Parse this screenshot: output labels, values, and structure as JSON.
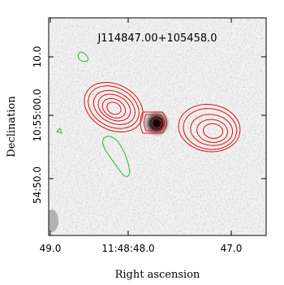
{
  "figure": {
    "title": "J114847.00+105458.0",
    "x_label": "Right ascension",
    "y_label": "Declination",
    "x_ticks": [
      "49.0",
      "11:48:48.0",
      "47.0"
    ],
    "y_ticks": [
      "10.0",
      "10:55:00.0",
      "54:50.0"
    ]
  }
}
